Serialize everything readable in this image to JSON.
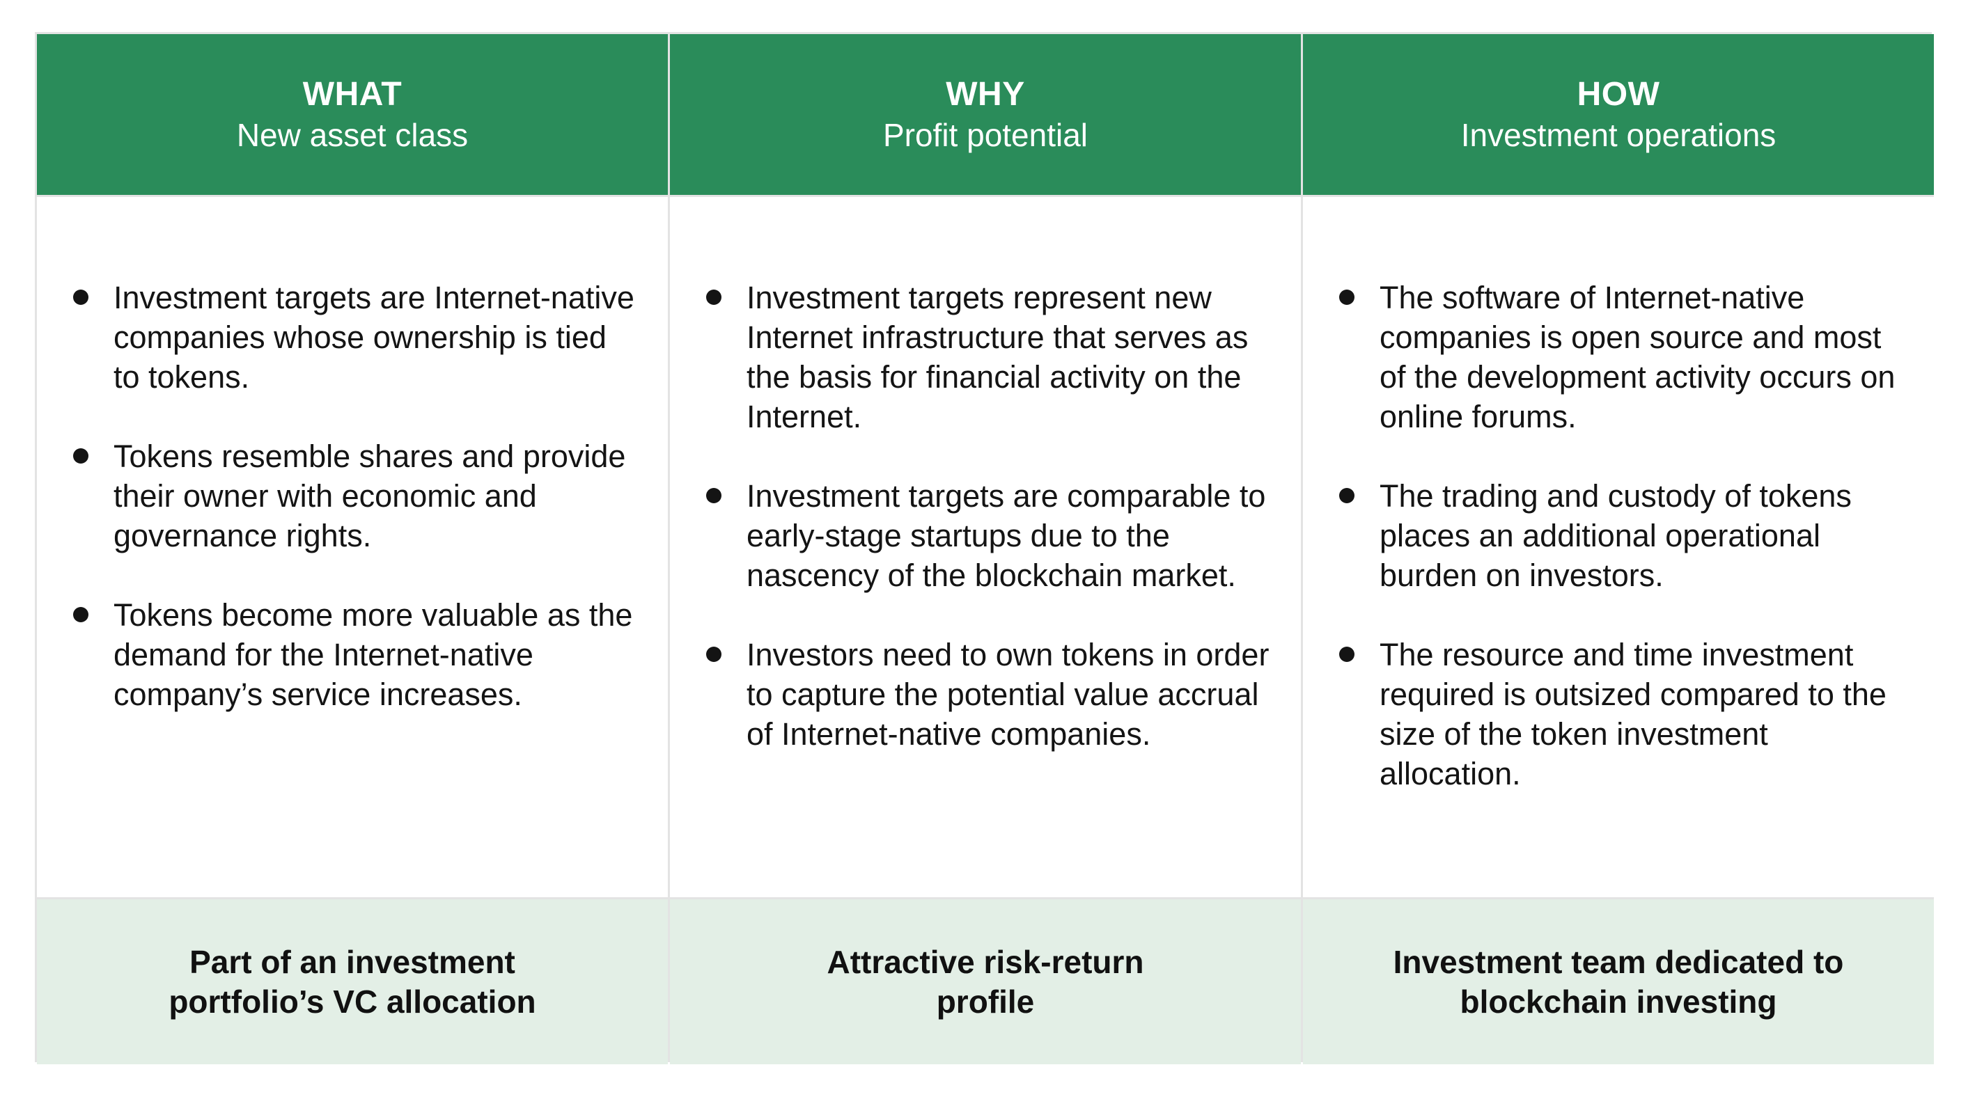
{
  "colors": {
    "header_green": "#2a8c5a",
    "footer_tint": "#e3efe6",
    "grid_line": "#e3e3e3"
  },
  "columns": [
    {
      "title": "WHAT",
      "subtitle": "New asset class",
      "bullets": [
        "Investment targets are Internet-native companies whose ownership is tied to tokens.",
        "Tokens resemble shares and provide their owner with economic and governance rights.",
        "Tokens become more valuable as the demand for the Internet-native company’s service increases."
      ],
      "footer_line1": "Part of an investment",
      "footer_line2": "portfolio’s VC allocation"
    },
    {
      "title": "WHY",
      "subtitle": "Profit potential",
      "bullets": [
        "Investment targets represent new Internet infrastructure that serves as the basis for financial activity on the Internet.",
        "Investment targets are comparable to early-stage startups due to the nascency of the blockchain market.",
        "Investors need to own tokens in order to capture the potential value accrual of Internet-native companies."
      ],
      "footer_line1": "Attractive risk-return",
      "footer_line2": "profile"
    },
    {
      "title": "HOW",
      "subtitle": "Investment operations",
      "bullets": [
        "The software of Internet-native companies is open source and most of the development activity occurs on online forums.",
        "The trading and custody of tokens places an additional operational burden on investors.",
        "The resource and time investment required is outsized compared to the size of the token investment allocation."
      ],
      "footer_line1": "Investment team dedicated to",
      "footer_line2": "blockchain investing"
    }
  ]
}
